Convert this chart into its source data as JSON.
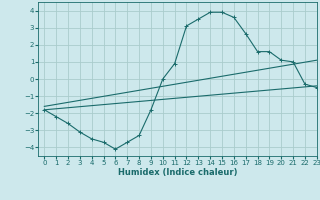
{
  "xlabel": "Humidex (Indice chaleur)",
  "xlim": [
    -0.5,
    23
  ],
  "ylim": [
    -4.5,
    4.5
  ],
  "yticks": [
    -4,
    -3,
    -2,
    -1,
    0,
    1,
    2,
    3,
    4
  ],
  "xticks": [
    0,
    1,
    2,
    3,
    4,
    5,
    6,
    7,
    8,
    9,
    10,
    11,
    12,
    13,
    14,
    15,
    16,
    17,
    18,
    19,
    20,
    21,
    22,
    23
  ],
  "bg_color": "#cde8ec",
  "grid_color": "#aacccc",
  "line_color": "#1a6b6b",
  "line1_x": [
    0,
    1,
    2,
    3,
    4,
    5,
    6,
    7,
    8,
    9,
    10,
    11,
    12,
    13,
    14,
    15,
    16,
    17,
    18,
    19,
    20,
    21,
    22,
    23
  ],
  "line1_y": [
    -1.8,
    -2.2,
    -2.6,
    -3.1,
    -3.5,
    -3.7,
    -4.1,
    -3.7,
    -3.3,
    -1.8,
    0.0,
    0.9,
    3.1,
    3.5,
    3.9,
    3.9,
    3.6,
    2.65,
    1.6,
    1.6,
    1.1,
    1.0,
    -0.3,
    -0.5
  ],
  "line2_x": [
    0,
    23
  ],
  "line2_y": [
    -1.8,
    -0.4
  ],
  "line3_x": [
    0,
    23
  ],
  "line3_y": [
    -1.6,
    1.1
  ],
  "marker": "+"
}
